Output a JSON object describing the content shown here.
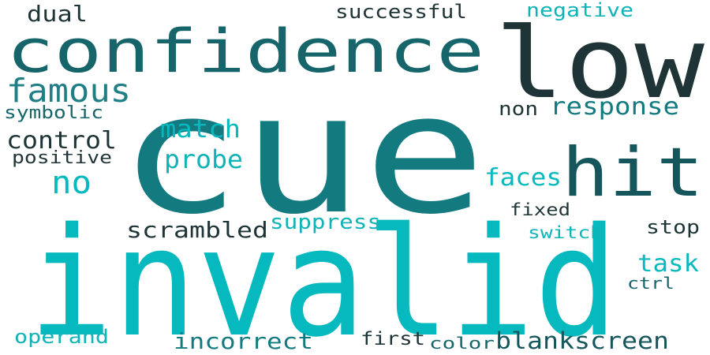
{
  "palette": {
    "dark": "#1f3436",
    "deep-teal": "#15565c",
    "teal": "#137a7f",
    "cyan": "#06b9be",
    "aqua": "#0fb4b8"
  },
  "words": [
    {
      "text": "cue",
      "color": "#137a7f"
    },
    {
      "text": "invalid",
      "color": "#06b9be"
    },
    {
      "text": "low",
      "color": "#1f3436"
    },
    {
      "text": "confidence",
      "color": "#15656a"
    },
    {
      "text": "hit",
      "color": "#15565c"
    },
    {
      "text": "famous",
      "color": "#1f7f85"
    },
    {
      "text": "response",
      "color": "#137a7f"
    },
    {
      "text": "match",
      "color": "#06b9be"
    },
    {
      "text": "probe",
      "color": "#0fb4b8"
    },
    {
      "text": "control",
      "color": "#1f3436"
    },
    {
      "text": "no",
      "color": "#06b9be"
    },
    {
      "text": "faces",
      "color": "#06b9be"
    },
    {
      "text": "scrambled",
      "color": "#1f3436"
    },
    {
      "text": "suppress",
      "color": "#0fb4b8"
    },
    {
      "text": "task",
      "color": "#06b9be"
    },
    {
      "text": "incorrect",
      "color": "#137a7f"
    },
    {
      "text": "blankscreen",
      "color": "#15565c"
    },
    {
      "text": "dual",
      "color": "#1f3436"
    },
    {
      "text": "successful",
      "color": "#1f3436"
    },
    {
      "text": "negative",
      "color": "#0fb4b8"
    },
    {
      "text": "non",
      "color": "#1f3436"
    },
    {
      "text": "symbolic",
      "color": "#15656a"
    },
    {
      "text": "positive",
      "color": "#1f3436"
    },
    {
      "text": "fixed",
      "color": "#1f3436"
    },
    {
      "text": "switch",
      "color": "#0fb4b8"
    },
    {
      "text": "stop",
      "color": "#1f3436"
    },
    {
      "text": "ctrl",
      "color": "#15656a"
    },
    {
      "text": "operand",
      "color": "#0fb4b8"
    },
    {
      "text": "first",
      "color": "#1f3436"
    },
    {
      "text": "color",
      "color": "#15656a"
    }
  ]
}
